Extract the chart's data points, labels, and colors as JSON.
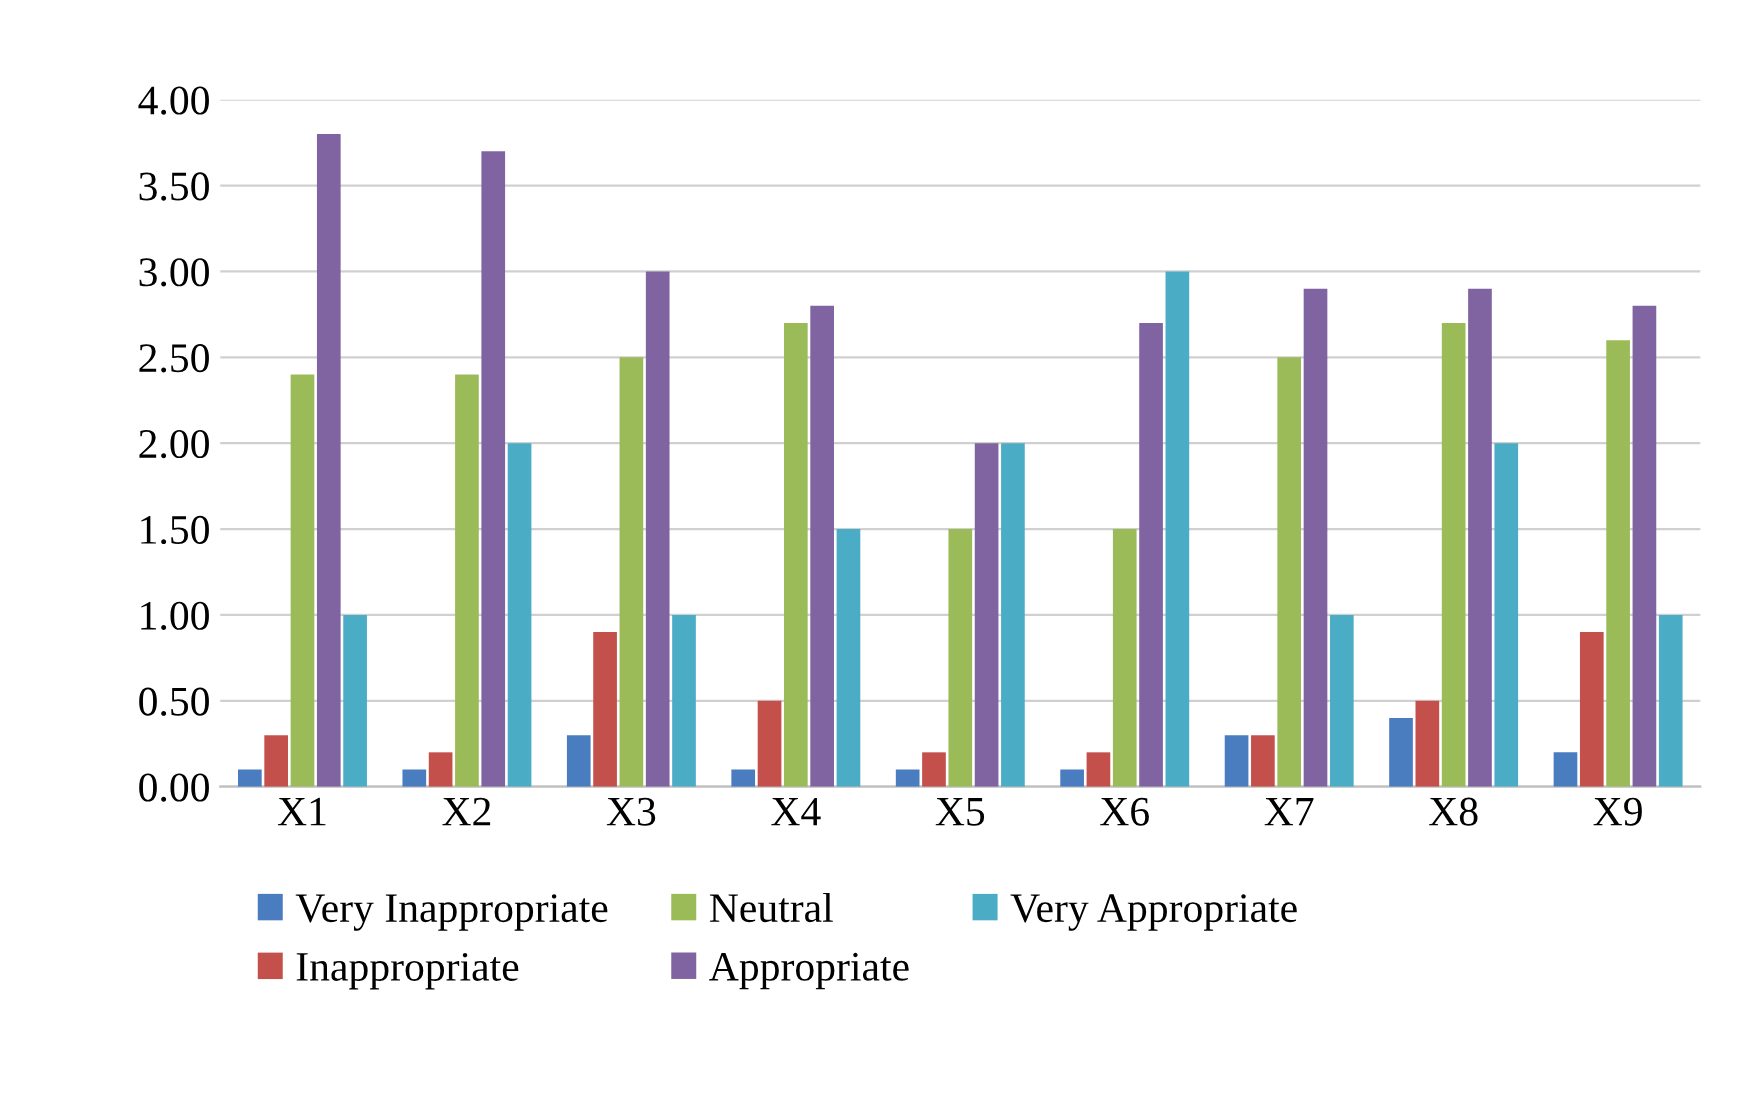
{
  "chart_data": {
    "type": "bar",
    "categories": [
      "X1",
      "X2",
      "X3",
      "X4",
      "X5",
      "X6",
      "X7",
      "X8",
      "X9"
    ],
    "series": [
      {
        "name": "Very Inappropriate",
        "color": "#4a7cc0",
        "values": [
          0.1,
          0.1,
          0.3,
          0.1,
          0.1,
          0.1,
          0.3,
          0.4,
          0.2
        ]
      },
      {
        "name": "Inappropriate",
        "color": "#c4504c",
        "values": [
          0.3,
          0.2,
          0.9,
          0.5,
          0.2,
          0.2,
          0.3,
          0.5,
          0.9
        ]
      },
      {
        "name": "Neutral",
        "color": "#9bbb59",
        "values": [
          2.4,
          2.4,
          2.5,
          2.7,
          1.5,
          1.5,
          2.5,
          2.7,
          2.6
        ]
      },
      {
        "name": "Appropriate",
        "color": "#8064a2",
        "values": [
          3.8,
          3.7,
          3.0,
          2.8,
          2.0,
          2.7,
          2.9,
          2.9,
          2.8
        ]
      },
      {
        "name": "Very Appropriate",
        "color": "#4bacc6",
        "values": [
          1.0,
          2.0,
          1.0,
          1.5,
          2.0,
          3.0,
          1.0,
          2.0,
          1.0
        ]
      }
    ],
    "ylim": [
      0,
      4.0
    ],
    "yticks": [
      {
        "value": 0,
        "label": "0.00"
      },
      {
        "value": 0.5,
        "label": "0.50"
      },
      {
        "value": 1.0,
        "label": "1.00"
      },
      {
        "value": 1.5,
        "label": "1.50"
      },
      {
        "value": 2.0,
        "label": "2.00"
      },
      {
        "value": 2.5,
        "label": "2.50"
      },
      {
        "value": 3.0,
        "label": "3.00"
      },
      {
        "value": 3.5,
        "label": "3.50"
      },
      {
        "value": 4.0,
        "label": "4.00"
      }
    ],
    "grid": "y",
    "legend": "bottom"
  }
}
